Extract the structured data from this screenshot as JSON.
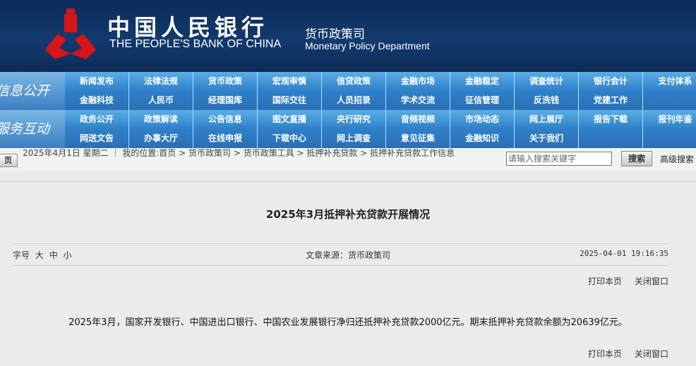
{
  "header": {
    "logo_text": "中国人民银行",
    "logo_en": "THE PEOPLE'S BANK OF CHINA",
    "dept_cn": "货币政策司",
    "dept_en": "Monetary Policy Department",
    "brand_color": "#d7141a"
  },
  "nav": {
    "info_label": "信息公开",
    "info_rows": [
      [
        "新闻发布",
        "法律法规",
        "货币政策",
        "宏观审慎",
        "信贷政策",
        "金融市场",
        "金融稳定",
        "调查统计",
        "银行会计",
        "支付体系"
      ],
      [
        "金融科技",
        "人民币",
        "经理国库",
        "国际交往",
        "人员招录",
        "学术交流",
        "征信管理",
        "反洗钱",
        "党建工作",
        ""
      ]
    ],
    "service_label": "服务互动",
    "service_rows": [
      [
        "政务公开",
        "政策解读",
        "公告信息",
        "图文直播",
        "央行研究",
        "音频视频",
        "市场动态",
        "网上展厅",
        "报告下载",
        "报刊年鉴"
      ],
      [
        "网送文告",
        "办事大厅",
        "在线申报",
        "下载中心",
        "网上调查",
        "意见征集",
        "金融知识",
        "关于我们",
        "",
        ""
      ]
    ]
  },
  "crumb": {
    "home_btn": "页",
    "date": "2025年4月1日 星期二 ｜ 我的位置:",
    "items": [
      "首页",
      "货币政策司",
      "货币政策工具",
      "抵押补充贷款",
      "抵押补充贷款工作信息"
    ],
    "sep": " > "
  },
  "search": {
    "placeholder": "请输入搜索关键字",
    "button": "搜索",
    "advanced": "高级搜索"
  },
  "article": {
    "title": "2025年3月抵押补充贷款开展情况",
    "font_label": "字号",
    "font_sizes": [
      "大",
      "中",
      "小"
    ],
    "source": "文章来源：货币政策司",
    "date": "2025-04-01 19:16:35",
    "print": "打印本页",
    "close": "关闭窗口",
    "body": "2025年3月，国家开发银行、中国进出口银行、中国农业发展银行净归还抵押补充贷款2000亿元。期末抵押补充贷款余额为20639亿元。"
  }
}
